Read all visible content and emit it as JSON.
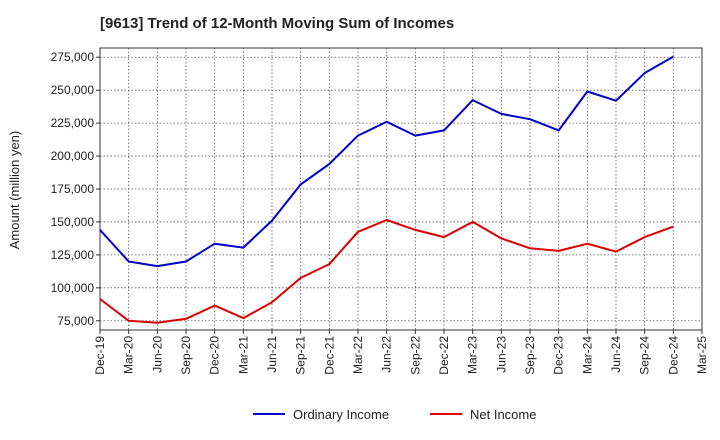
{
  "chart_data": {
    "type": "line",
    "title": "[9613]  Trend of 12-Month Moving Sum of Incomes",
    "xlabel": "",
    "ylabel": "Amount (million yen)",
    "categories": [
      "Dec-19",
      "Mar-20",
      "Jun-20",
      "Sep-20",
      "Dec-20",
      "Mar-21",
      "Jun-21",
      "Sep-21",
      "Dec-21",
      "Mar-22",
      "Jun-22",
      "Sep-22",
      "Dec-22",
      "Mar-23",
      "Jun-23",
      "Sep-23",
      "Dec-23",
      "Mar-24",
      "Jun-24",
      "Sep-24",
      "Dec-24",
      "Mar-25"
    ],
    "y_ticks": [
      "75,000",
      "100,000",
      "125,000",
      "150,000",
      "175,000",
      "200,000",
      "225,000",
      "250,000",
      "275,000"
    ],
    "y_tick_values": [
      75000,
      100000,
      125000,
      150000,
      175000,
      200000,
      225000,
      250000,
      275000
    ],
    "ylim": [
      68000,
      282000
    ],
    "grid": true,
    "legend_position": "bottom",
    "series": [
      {
        "name": "Ordinary Income",
        "color": "#0000cc",
        "values": [
          144000,
          120000,
          116500,
          120000,
          133500,
          130500,
          151000,
          178500,
          194000,
          215500,
          226000,
          215500,
          219500,
          242500,
          232000,
          228000,
          219500,
          249000,
          242000,
          263000,
          275500,
          null
        ]
      },
      {
        "name": "Net Income",
        "color": "#dd0000",
        "values": [
          91500,
          75000,
          73500,
          76500,
          86500,
          77000,
          89000,
          107500,
          118000,
          142500,
          151500,
          144000,
          138500,
          150000,
          137500,
          130000,
          128000,
          133500,
          127500,
          138500,
          146500,
          null
        ]
      }
    ]
  }
}
